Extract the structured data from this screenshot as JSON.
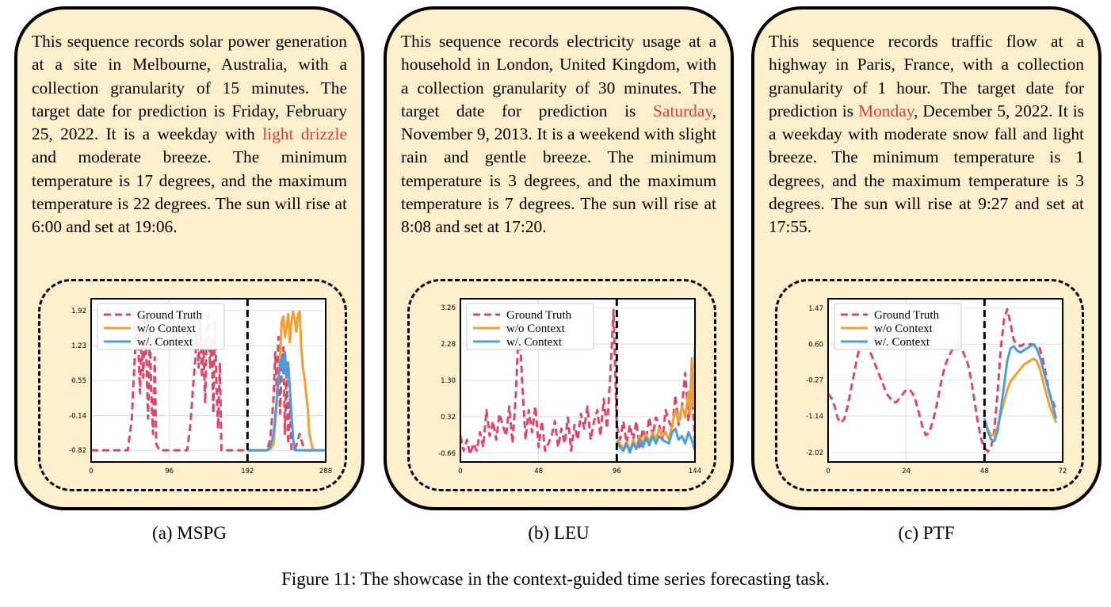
{
  "panels": [
    {
      "segments": [
        {
          "t": "This sequence records solar power generation at a site in Melbourne, Australia, with a collection granularity of 15 minutes. The target date for prediction is Friday, February 25, 2022. It is a weekday with ",
          "hl": false
        },
        {
          "t": "light drizzle",
          "hl": true
        },
        {
          "t": " and moderate breeze. The minimum temperature is 17 degrees, and the maximum temperature is 22 degrees. The sun will rise at 6:00 and set at 19:06.",
          "hl": false
        }
      ],
      "caption": "(a) MSPG"
    },
    {
      "segments": [
        {
          "t": "This sequence records electricity usage at a household in London, United Kingdom, with a collection granularity of 30 minutes. The target date for prediction is ",
          "hl": false
        },
        {
          "t": "Saturday",
          "hl": true
        },
        {
          "t": ", November 9, 2013. It is a weekend with slight rain and gentle breeze. The minimum temperature is 3 degrees, and the maximum temperature is 7 degrees. The sun will rise at 8:08 and set at 17:20.",
          "hl": false
        }
      ],
      "caption": "(b) LEU"
    },
    {
      "segments": [
        {
          "t": "This sequence records traffic flow at a highway in Paris, France, with a collection granularity of 1 hour. The target date for prediction is ",
          "hl": false
        },
        {
          "t": "Monday",
          "hl": true
        },
        {
          "t": ", December 5, 2022. It is a weekday with moderate snow fall and light breeze. The minimum temperature is 1 degrees, and the maximum temperature is 3 degrees. The sun will rise at 9:27 and set at 17:55.",
          "hl": false
        }
      ],
      "caption": "(c) PTF"
    }
  ],
  "figure_caption": "Figure 11: The showcase in the context-guided time series forecasting task.",
  "colors": {
    "panel_bg": "#fcefcc",
    "highlight": "#dd3b3b",
    "ground_truth": "#d9496b",
    "wo_context": "#f0a030",
    "w_context": "#4a9fd8"
  },
  "chart_data": [
    {
      "type": "line",
      "title": "",
      "legend": [
        "Ground Truth",
        "w/o Context",
        "w/. Context"
      ],
      "legend_position": "top-left",
      "grid": true,
      "xlim": [
        0,
        288
      ],
      "ylim": [
        -1.05,
        2.15
      ],
      "xticks": [
        0,
        96,
        192,
        288
      ],
      "xtick_labels": [
        "0",
        "96",
        "192",
        "288"
      ],
      "yticks": [
        -0.82,
        -0.14,
        0.55,
        1.23,
        1.92
      ],
      "ytick_labels": [
        "-0.82",
        "-0.14",
        "0.55",
        "1.23",
        "1.92"
      ],
      "forecast_start": 192,
      "series": [
        {
          "name": "Ground Truth",
          "style": "dashed",
          "x": [
            0,
            20,
            40,
            45,
            50,
            52,
            54,
            56,
            58,
            60,
            62,
            64,
            66,
            68,
            70,
            72,
            74,
            76,
            78,
            80,
            84,
            88,
            100,
            110,
            118,
            122,
            125,
            128,
            130,
            132,
            134,
            136,
            138,
            140,
            142,
            144,
            146,
            148,
            150,
            152,
            154,
            156,
            158,
            160,
            164,
            168,
            180,
            192,
            200,
            210,
            216,
            220,
            224,
            226,
            228,
            230,
            232,
            234,
            236,
            238,
            240,
            242,
            244,
            246,
            250,
            256,
            262,
            268,
            274,
            280,
            288
          ],
          "y": [
            -0.82,
            -0.82,
            -0.82,
            -0.82,
            -0.2,
            0.5,
            1.1,
            1.6,
            1.2,
            0.3,
            1.4,
            0.6,
            1.85,
            0.9,
            -0.2,
            1.5,
            0.2,
            -0.5,
            1.0,
            -0.7,
            -0.82,
            -0.82,
            -0.82,
            -0.82,
            -0.82,
            -0.3,
            0.4,
            1.0,
            1.5,
            0.8,
            1.75,
            0.6,
            1.2,
            0.1,
            1.6,
            1.9,
            0.8,
            1.3,
            -0.1,
            1.7,
            0.4,
            -0.4,
            0.9,
            -0.82,
            -0.82,
            -0.82,
            -0.82,
            -0.82,
            -0.82,
            -0.82,
            -0.82,
            -0.6,
            0.2,
            1.1,
            0.3,
            1.4,
            -0.1,
            0.8,
            1.2,
            -0.5,
            0.9,
            -0.7,
            0.2,
            -0.82,
            -0.82,
            -0.5,
            -0.82,
            -0.82,
            -0.82,
            -0.82,
            -0.82
          ]
        },
        {
          "name": "w/o Context",
          "style": "solid",
          "x": [
            192,
            200,
            210,
            216,
            220,
            224,
            228,
            232,
            234,
            236,
            238,
            240,
            242,
            244,
            246,
            248,
            250,
            252,
            254,
            256,
            258,
            260,
            262,
            264,
            266,
            268,
            272,
            276,
            280,
            288
          ],
          "y": [
            -0.82,
            -0.82,
            -0.82,
            -0.82,
            -0.8,
            -0.7,
            0.1,
            1.0,
            1.7,
            1.8,
            1.4,
            1.6,
            1.85,
            1.3,
            1.7,
            1.9,
            1.75,
            1.5,
            1.85,
            1.9,
            1.2,
            0.8,
            0.6,
            0.3,
            0.0,
            -0.5,
            -0.8,
            -0.82,
            -0.82,
            -0.82
          ]
        },
        {
          "name": "w/. Context",
          "style": "solid",
          "x": [
            192,
            200,
            210,
            216,
            220,
            224,
            228,
            232,
            234,
            236,
            238,
            240,
            242,
            244,
            246,
            248,
            250,
            252,
            254,
            256,
            260,
            270,
            280,
            288
          ],
          "y": [
            -0.82,
            -0.82,
            -0.82,
            -0.82,
            -0.75,
            -0.5,
            0.2,
            0.9,
            1.0,
            0.7,
            1.1,
            0.6,
            0.9,
            0.4,
            -0.1,
            -0.6,
            -0.82,
            -0.82,
            -0.82,
            -0.82,
            -0.82,
            -0.82,
            -0.82,
            -0.82
          ]
        }
      ]
    },
    {
      "type": "line",
      "title": "",
      "legend": [
        "Ground Truth",
        "w/o Context",
        "w/. Context"
      ],
      "legend_position": "top-left",
      "grid": true,
      "xlim": [
        0,
        144
      ],
      "ylim": [
        -0.9,
        3.5
      ],
      "xticks": [
        0,
        48,
        96,
        144
      ],
      "xtick_labels": [
        "0",
        "48",
        "96",
        "144"
      ],
      "yticks": [
        -0.66,
        0.32,
        1.3,
        2.28,
        3.26
      ],
      "ytick_labels": [
        "-0.66",
        "0.32",
        "1.30",
        "2.28",
        "3.26"
      ],
      "forecast_start": 96,
      "series": [
        {
          "name": "Ground Truth",
          "style": "dashed",
          "x": [
            0,
            2,
            4,
            6,
            8,
            10,
            12,
            14,
            16,
            18,
            20,
            22,
            24,
            26,
            28,
            30,
            32,
            34,
            36,
            38,
            40,
            42,
            44,
            46,
            48,
            50,
            52,
            54,
            56,
            58,
            60,
            62,
            64,
            66,
            68,
            70,
            72,
            74,
            76,
            78,
            80,
            82,
            84,
            86,
            88,
            90,
            92,
            94,
            96,
            98,
            100,
            102,
            104,
            106,
            108,
            110,
            112,
            114,
            116,
            118,
            120,
            122,
            124,
            126,
            128,
            130,
            132,
            134,
            136,
            138,
            140,
            142,
            144
          ],
          "y": [
            -0.2,
            -0.6,
            -0.3,
            -0.7,
            -0.4,
            -0.6,
            -0.1,
            -0.5,
            0.5,
            -0.2,
            0.2,
            -0.3,
            0.4,
            0.1,
            -0.2,
            0.6,
            -0.4,
            0.9,
            2.9,
            1.2,
            -0.3,
            0.5,
            -0.1,
            0.6,
            -0.5,
            0.2,
            -0.6,
            -0.4,
            -0.2,
            0.2,
            -0.5,
            0.0,
            -0.4,
            0.3,
            -0.6,
            0.1,
            -0.3,
            0.4,
            0.0,
            0.6,
            -0.3,
            0.2,
            0.5,
            -0.2,
            0.8,
            0.0,
            1.4,
            3.2,
            0.1,
            -0.3,
            0.2,
            -0.4,
            0.1,
            -0.3,
            0.2,
            -0.5,
            0.0,
            -0.3,
            0.3,
            -0.2,
            0.3,
            0.1,
            -0.3,
            0.5,
            0.2,
            0.0,
            0.9,
            0.1,
            0.6,
            1.5,
            0.2,
            1.1,
            -0.4
          ]
        },
        {
          "name": "w/o Context",
          "style": "solid",
          "x": [
            96,
            98,
            100,
            102,
            104,
            106,
            108,
            110,
            112,
            114,
            116,
            118,
            120,
            122,
            124,
            126,
            128,
            130,
            132,
            134,
            136,
            138,
            140,
            141,
            142,
            143,
            144
          ],
          "y": [
            -0.3,
            -0.4,
            -0.55,
            -0.35,
            -0.6,
            -0.3,
            -0.5,
            -0.2,
            -0.4,
            -0.15,
            -0.35,
            -0.1,
            -0.3,
            0.0,
            -0.2,
            -0.1,
            -0.3,
            0.1,
            0.5,
            0.2,
            0.6,
            0.3,
            1.0,
            0.4,
            1.9,
            0.6,
            2.2
          ]
        },
        {
          "name": "w/. Context",
          "style": "solid",
          "x": [
            96,
            98,
            100,
            102,
            104,
            106,
            108,
            110,
            112,
            114,
            116,
            118,
            120,
            122,
            124,
            126,
            128,
            130,
            132,
            134,
            136,
            138,
            140,
            142,
            144
          ],
          "y": [
            -0.35,
            -0.5,
            -0.6,
            -0.4,
            -0.65,
            -0.4,
            -0.55,
            -0.3,
            -0.5,
            -0.25,
            -0.45,
            -0.2,
            -0.4,
            -0.2,
            -0.3,
            -0.35,
            -0.4,
            -0.1,
            0.0,
            -0.3,
            -0.2,
            -0.4,
            -0.1,
            -0.3,
            -0.6
          ]
        }
      ]
    },
    {
      "type": "line",
      "title": "",
      "legend": [
        "Ground Truth",
        "w/o Context",
        "w/. Context"
      ],
      "legend_position": "top-left",
      "grid": true,
      "xlim": [
        0,
        72
      ],
      "ylim": [
        -2.25,
        1.7
      ],
      "xticks": [
        0,
        24,
        48,
        72
      ],
      "xtick_labels": [
        "0",
        "24",
        "48",
        "72"
      ],
      "yticks": [
        -2.02,
        -1.14,
        -0.27,
        0.6,
        1.47
      ],
      "ytick_labels": [
        "-2.02",
        "-1.14",
        "-0.27",
        "0.60",
        "1.47"
      ],
      "forecast_start": 48,
      "series": [
        {
          "name": "Ground Truth",
          "style": "dashed",
          "x": [
            0,
            1,
            2,
            3,
            4,
            5,
            6,
            7,
            8,
            9,
            10,
            11,
            12,
            13,
            14,
            15,
            16,
            17,
            18,
            19,
            20,
            21,
            22,
            23,
            24,
            25,
            26,
            27,
            28,
            29,
            30,
            31,
            32,
            33,
            34,
            35,
            36,
            37,
            38,
            39,
            40,
            41,
            42,
            43,
            44,
            45,
            46,
            47,
            48,
            49,
            50,
            51,
            52,
            53,
            54,
            55,
            56,
            57,
            58,
            59,
            60,
            61,
            62,
            63,
            64,
            65,
            66,
            67,
            68,
            69,
            70
          ],
          "y": [
            -0.6,
            -0.7,
            -0.9,
            -1.2,
            -1.3,
            -1.2,
            -0.9,
            -0.5,
            -0.1,
            0.3,
            0.6,
            0.7,
            0.6,
            0.4,
            0.2,
            0.0,
            -0.2,
            -0.4,
            -0.6,
            -0.7,
            -0.8,
            -0.8,
            -0.7,
            -0.6,
            -0.5,
            -0.5,
            -0.6,
            -0.8,
            -1.1,
            -1.4,
            -1.6,
            -1.55,
            -1.3,
            -1.0,
            -0.6,
            -0.2,
            0.1,
            0.3,
            0.45,
            0.55,
            0.6,
            0.5,
            0.3,
            0.1,
            -0.3,
            -0.8,
            -1.3,
            -1.7,
            -1.9,
            -2.0,
            -1.9,
            -1.5,
            -0.6,
            0.5,
            1.2,
            1.45,
            1.1,
            0.7,
            0.6,
            0.55,
            0.6,
            0.6,
            0.6,
            0.6,
            0.55,
            0.5,
            0.2,
            -0.2,
            -0.6,
            -0.8,
            -1.0
          ]
        },
        {
          "name": "w/o Context",
          "style": "solid",
          "x": [
            48,
            49,
            50,
            51,
            52,
            53,
            54,
            55,
            56,
            57,
            58,
            59,
            60,
            61,
            62,
            63,
            64,
            65,
            66,
            67,
            68,
            69,
            70
          ],
          "y": [
            -1.2,
            -1.45,
            -1.6,
            -1.6,
            -1.4,
            -1.1,
            -0.8,
            -0.5,
            -0.3,
            -0.2,
            -0.1,
            0.0,
            0.1,
            0.15,
            0.2,
            0.25,
            0.2,
            0.0,
            -0.3,
            -0.6,
            -0.9,
            -1.1,
            -1.3
          ]
        },
        {
          "name": "w/. Context",
          "style": "solid",
          "x": [
            48,
            49,
            50,
            51,
            52,
            53,
            54,
            55,
            56,
            57,
            58,
            59,
            60,
            61,
            62,
            63,
            64,
            65,
            66,
            67,
            68,
            69,
            70
          ],
          "y": [
            -1.2,
            -1.5,
            -1.7,
            -1.75,
            -1.5,
            -1.0,
            -0.4,
            0.2,
            0.5,
            0.55,
            0.45,
            0.4,
            0.45,
            0.5,
            0.55,
            0.6,
            0.5,
            0.3,
            0.0,
            -0.3,
            -0.6,
            -0.9,
            -1.2
          ]
        }
      ]
    }
  ]
}
